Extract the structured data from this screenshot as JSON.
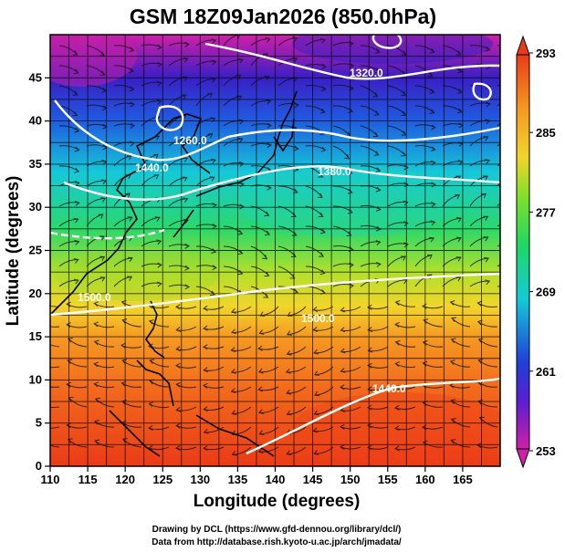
{
  "title": "GSM 18Z09Jan2026 (850.0hPa)",
  "map": {
    "x_label": "Longitude (degrees)",
    "y_label": "Latitude  (degrees)",
    "lon_ticks": [
      "110",
      "115",
      "120",
      "125",
      "130",
      "135",
      "140",
      "145",
      "150",
      "155",
      "160",
      "165"
    ],
    "lat_ticks": [
      "0",
      "5",
      "10",
      "15",
      "20",
      "25",
      "30",
      "35",
      "40",
      "45"
    ],
    "lon_range": [
      110,
      170
    ],
    "lat_range": [
      0,
      50
    ],
    "grid": true
  },
  "colorbar": {
    "ticks": [
      "293",
      "285",
      "277",
      "269",
      "261",
      "253"
    ]
  },
  "contour_labels": [
    "1320.0",
    "1260.0",
    "1380.0",
    "1440.0",
    "1500.0",
    "1500.0",
    "1440.0"
  ],
  "credits": {
    "line1": "Drawing by DCL (https://www.gfd-dennou.org/library/dcl/)",
    "line2": "Data from http://database.rish.kyoto-u.ac.jp/arch/jmadata/"
  }
}
